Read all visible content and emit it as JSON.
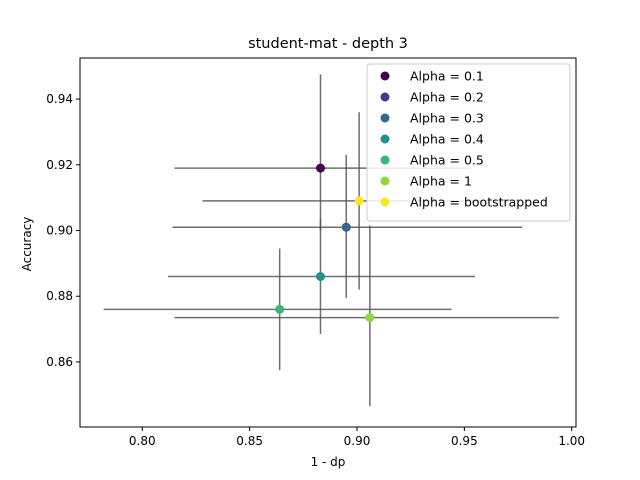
{
  "chart_data": {
    "type": "scatter",
    "title": "student-mat - depth 3",
    "xlabel": "1 - dp",
    "ylabel": "Accuracy",
    "xlim": [
      0.771,
      1.002
    ],
    "ylim": [
      0.8402,
      0.9525
    ],
    "x_ticks": [
      "0.80",
      "0.85",
      "0.90",
      "0.95",
      "1.00"
    ],
    "x_tick_values": [
      0.8,
      0.85,
      0.9,
      0.95,
      1.0
    ],
    "y_ticks": [
      "0.86",
      "0.88",
      "0.90",
      "0.92",
      "0.94"
    ],
    "y_tick_values": [
      0.86,
      0.88,
      0.9,
      0.92,
      0.94
    ],
    "grid": false,
    "legend_position": "top-right",
    "error_bar_color": "#555555",
    "series": [
      {
        "name": "Alpha = 0.1",
        "color": "#440154",
        "x": 0.883,
        "y": 0.919,
        "x_err": [
          0.815,
          0.953
        ],
        "y_err": [
          0.9,
          0.9475
        ]
      },
      {
        "name": "Alpha = 0.2",
        "color": "#443983",
        "x": 0.895,
        "y": 0.901,
        "x_err": [
          0.895,
          0.895
        ],
        "y_err": [
          0.901,
          0.901
        ]
      },
      {
        "name": "Alpha = 0.3",
        "color": "#31688e",
        "x": 0.895,
        "y": 0.901,
        "x_err": [
          0.814,
          0.977
        ],
        "y_err": [
          0.8795,
          0.923
        ]
      },
      {
        "name": "Alpha = 0.4",
        "color": "#21918c",
        "x": 0.883,
        "y": 0.886,
        "x_err": [
          0.812,
          0.955
        ],
        "y_err": [
          0.8685,
          0.9035
        ]
      },
      {
        "name": "Alpha = 0.5",
        "color": "#35b779",
        "x": 0.864,
        "y": 0.876,
        "x_err": [
          0.782,
          0.944
        ],
        "y_err": [
          0.8575,
          0.8945
        ]
      },
      {
        "name": "Alpha = 1",
        "color": "#90d743",
        "x": 0.906,
        "y": 0.8735,
        "x_err": [
          0.815,
          0.994
        ],
        "y_err": [
          0.8465,
          0.9015
        ]
      },
      {
        "name": "Alpha = bootstrapped",
        "color": "#fde725",
        "x": 0.901,
        "y": 0.909,
        "x_err": [
          0.828,
          0.975
        ],
        "y_err": [
          0.882,
          0.936
        ]
      }
    ]
  }
}
